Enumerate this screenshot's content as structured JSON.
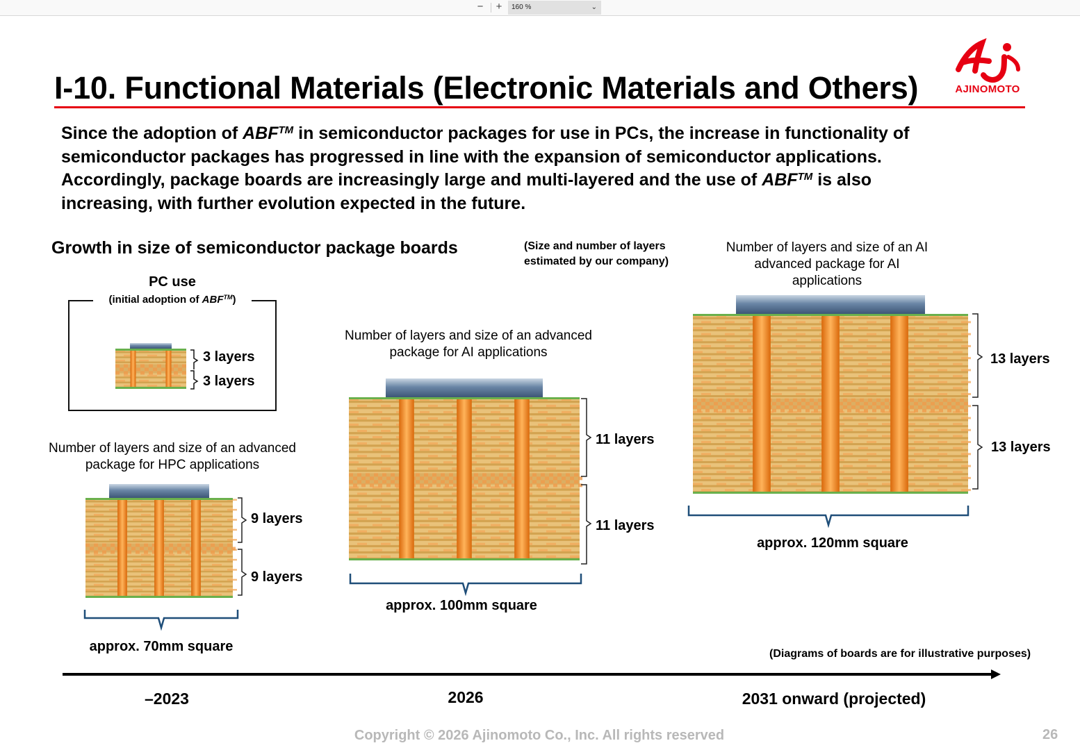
{
  "toolbar": {
    "zoom_out": "−",
    "zoom_in": "+",
    "zoom_value": "160 %",
    "zoom_dropdown": "⌄"
  },
  "slide": {
    "title": "I-10. Functional Materials (Electronic Materials and Others)",
    "logo_text": "AJINOMOTO",
    "intro": {
      "l1_a": "Since the adoption of ",
      "abf": "ABF",
      "tm": "TM",
      "l1_b": " in semiconductor packages for use in PCs, the increase in functionality of",
      "l2": "semiconductor packages has progressed in line with the expansion of semiconductor applications.",
      "l3_a": "Accordingly, package boards are increasingly large and multi-layered and the use of ",
      "l3_b": " is also",
      "l4": "increasing, with further evolution expected in the future."
    },
    "section_heading": "Growth in size of semiconductor package boards",
    "estimate_note_1": "(Size and number of layers",
    "estimate_note_2": "estimated by our company)",
    "pc": {
      "title": "PC use",
      "sub_a": "(initial adoption of ",
      "abf": "ABF",
      "tm": "TM",
      "sub_b": ")",
      "top_layers": "3 layers",
      "bottom_layers": "3 layers"
    },
    "hpc": {
      "caption_1": "Number of layers and size of an advanced",
      "caption_2": "package for HPC applications",
      "top_layers": "9 layers",
      "bottom_layers": "9 layers",
      "size": "approx. 70mm square"
    },
    "ai_2026": {
      "caption_1": "Number of layers and size of an advanced",
      "caption_2": "package for AI applications",
      "top_layers": "11 layers",
      "bottom_layers": "11 layers",
      "size": "approx. 100mm square"
    },
    "ai_2031": {
      "caption_1": "Number of layers and size of an AI",
      "caption_2": "advanced package for AI",
      "caption_3": "applications",
      "top_layers": "13 layers",
      "bottom_layers": "13 layers",
      "size": "approx. 120mm square"
    },
    "illustrative_note": "(Diagrams of boards are for illustrative purposes)",
    "timeline": {
      "t1": "–2023",
      "t2": "2026",
      "t3": "2031 onward (projected)"
    },
    "copyright": "Copyright © 2026 Ajinomoto Co., Inc. All rights reserved",
    "page_number": "26"
  },
  "colors": {
    "accent_red": "#e60012",
    "board_gold": "#e6c072",
    "via_orange": "#f08a1e",
    "bracket_blue": "#1f4e79",
    "chip_steel": "#4f6f94",
    "edge_green": "#6ab04c"
  }
}
